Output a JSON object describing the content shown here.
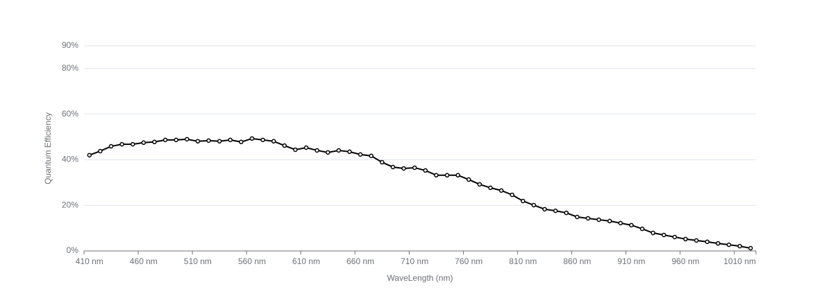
{
  "chart_data": {
    "type": "line",
    "x_label": "WaveLength (nm)",
    "y_label": "Quantum Efficiency",
    "categories": [
      "410 nm",
      null,
      null,
      null,
      null,
      "460 nm",
      null,
      null,
      null,
      null,
      "510 nm",
      null,
      null,
      null,
      null,
      "560 nm",
      null,
      null,
      null,
      null,
      "610 nm",
      null,
      null,
      null,
      null,
      "660 nm",
      null,
      null,
      null,
      null,
      "710 nm",
      null,
      null,
      null,
      null,
      "760 nm",
      null,
      null,
      null,
      null,
      "810 nm",
      null,
      null,
      null,
      null,
      "860 nm",
      null,
      null,
      null,
      null,
      "910 nm",
      null,
      null,
      null,
      null,
      "960 nm",
      null,
      null,
      null,
      null,
      "1010 nm",
      null
    ],
    "values": [
      42.0,
      43.8,
      45.9,
      46.8,
      46.8,
      47.5,
      47.8,
      48.7,
      48.7,
      49.0,
      48.1,
      48.4,
      48.1,
      48.7,
      47.8,
      49.3,
      48.7,
      48.1,
      46.2,
      44.4,
      45.3,
      44.1,
      43.2,
      44.1,
      43.5,
      42.3,
      41.7,
      38.9,
      36.8,
      36.2,
      36.5,
      35.3,
      33.2,
      33.2,
      33.2,
      31.3,
      29.2,
      27.7,
      26.5,
      24.6,
      21.9,
      20.1,
      18.3,
      17.6,
      16.7,
      14.9,
      14.3,
      13.7,
      13.1,
      12.2,
      11.3,
      9.7,
      7.9,
      7.0,
      6.1,
      5.2,
      4.6,
      4.0,
      3.3,
      2.7,
      2.1,
      1.2
    ],
    "color": "#000000",
    "ylim": [
      0,
      90
    ],
    "yticks": [
      {
        "value": 0,
        "label": "0%"
      },
      {
        "value": 20,
        "label": "20%"
      },
      {
        "value": 40,
        "label": "40%"
      },
      {
        "value": 60,
        "label": "60%"
      },
      {
        "value": 80,
        "label": "80%"
      },
      {
        "value": 90,
        "label": "90%"
      }
    ],
    "grid": true
  }
}
